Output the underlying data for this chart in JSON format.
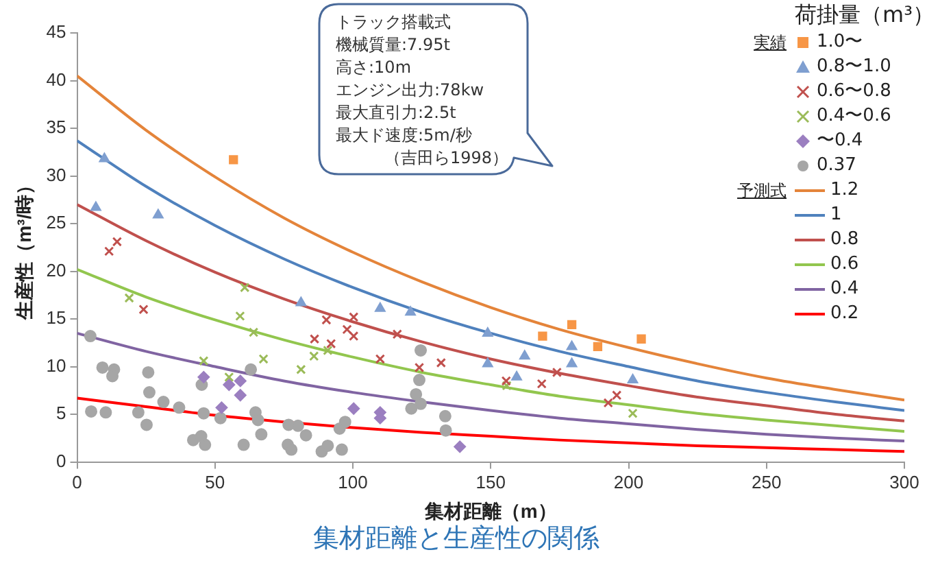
{
  "chart_data": {
    "type": "scatter",
    "title": "集材距離と生産性の関係",
    "xlabel": "集材距離（m）",
    "ylabel": "生産性（m³/時）",
    "legend_title": "荷掛量（m³）",
    "legend": "top right",
    "grid": false,
    "xlim": [
      0,
      300
    ],
    "xticks": [
      0,
      50,
      100,
      150,
      200,
      250,
      300
    ],
    "ylim": [
      0,
      45
    ],
    "yticks": [
      0,
      5,
      10,
      15,
      20,
      25,
      30,
      35,
      40,
      45
    ],
    "annotations": [
      "トラック搭載式",
      "機械質量:7.95t",
      "高さ:10m",
      "エンジン出力:78kw",
      "最大直引力:2.5t",
      "最大ド速度:5m/秒",
      "（吉田ら1998）",
      "実績",
      "予測式"
    ],
    "series": [
      {
        "name": "1.0〜",
        "type": "scatter",
        "marker": "square",
        "color": "#f79646",
        "x": [
          56.7,
          168.8,
          179.4,
          188.8,
          204.6
        ],
        "values": [
          31.7,
          13.2,
          14.4,
          12.1,
          12.9
        ]
      },
      {
        "name": "0.8〜1.0",
        "type": "scatter",
        "marker": "triangle",
        "color": "#7f9fd0",
        "x": [
          9.9,
          6.8,
          29.4,
          81.2,
          109.9,
          120.9,
          148.9,
          148.9,
          162.3,
          159.4,
          179.4,
          179.4,
          201.5
        ],
        "values": [
          31.8,
          26.7,
          25.9,
          16.7,
          16.1,
          15.7,
          13.5,
          10.3,
          11.1,
          8.9,
          12.1,
          10.3,
          8.6
        ]
      },
      {
        "name": "0.6〜0.8",
        "type": "scatter",
        "marker": "cross",
        "color": "#c0504d",
        "x": [
          11.6,
          14.5,
          24.1,
          86.1,
          92.1,
          90.4,
          97.9,
          100.3,
          100.3,
          116.1,
          109.9,
          124.1,
          132,
          155.6,
          168.5,
          174,
          192.6,
          195.7
        ],
        "values": [
          22.1,
          23.1,
          16.0,
          12.9,
          12.4,
          14.9,
          13.9,
          15.2,
          13.2,
          13.4,
          10.8,
          9.9,
          10.4,
          8.5,
          8.2,
          9.4,
          6.2,
          7.0
        ]
      },
      {
        "name": "0.4〜0.6",
        "type": "scatter",
        "marker": "cross",
        "color": "#9bbb59",
        "x": [
          18.9,
          60.8,
          59.1,
          64.0,
          45.9,
          67.6,
          55.1,
          81.2,
          85.9,
          90.9,
          155.8,
          201.5
        ],
        "values": [
          17.2,
          18.3,
          15.3,
          13.6,
          10.6,
          10.8,
          8.9,
          9.7,
          11.1,
          11.7,
          8.0,
          5.1
        ]
      },
      {
        "name": "〜0.4",
        "type": "scatter",
        "marker": "diamond",
        "color": "#9b7fc0",
        "x": [
          45.9,
          55.1,
          59.2,
          59.2,
          52.4,
          100.3,
          109.9,
          109.9,
          138.8
        ],
        "values": [
          8.9,
          8.1,
          8.5,
          7.0,
          5.7,
          5.6,
          5.2,
          4.6,
          1.6
        ]
      },
      {
        "name": "0.37",
        "type": "scatter",
        "marker": "circle",
        "color": "#a6a6a6",
        "x": [
          4.8,
          5.1,
          10.4,
          9.2,
          13.4,
          12.8,
          22.2,
          25.2,
          25.8,
          26.2,
          31.3,
          37.0,
          42.1,
          46.4,
          45.0,
          45.9,
          45.2,
          52.0,
          60.4,
          63.0,
          64.7,
          65.6,
          66.8,
          76.4,
          77.7,
          76.7,
          80.1,
          83.0,
          88.7,
          90.9,
          96.0,
          95.2,
          97.2,
          124.6,
          124.1,
          122.9,
          121.2,
          124.6,
          133.5,
          133.7
        ],
        "values": [
          13.2,
          5.3,
          5.2,
          9.9,
          9.7,
          9.0,
          5.2,
          3.9,
          9.4,
          7.3,
          6.3,
          5.7,
          2.3,
          1.8,
          2.7,
          5.1,
          8.1,
          4.6,
          1.8,
          9.7,
          5.2,
          4.4,
          2.9,
          1.8,
          1.3,
          3.9,
          3.8,
          2.8,
          1.1,
          1.7,
          1.3,
          3.5,
          4.2,
          11.7,
          8.6,
          7.1,
          5.6,
          6.1,
          4.8,
          3.3
        ]
      },
      {
        "name": "1.2",
        "type": "line",
        "marker": "none",
        "color": "#e4843a",
        "x": [
          0,
          25,
          50,
          75,
          100,
          125,
          150,
          175,
          200,
          225,
          250,
          275,
          300
        ],
        "values": [
          40.5,
          34.8,
          29.9,
          25.6,
          22.0,
          18.9,
          16.2,
          13.9,
          12.0,
          10.3,
          8.8,
          7.6,
          6.5
        ]
      },
      {
        "name": "1",
        "type": "line",
        "marker": "none",
        "color": "#4f81bd",
        "x": [
          0,
          25,
          50,
          75,
          100,
          125,
          150,
          175,
          200,
          225,
          250,
          275,
          300
        ],
        "values": [
          33.7,
          28.9,
          24.8,
          21.3,
          18.3,
          15.7,
          13.5,
          11.6,
          10.0,
          8.5,
          7.3,
          6.3,
          5.4
        ]
      },
      {
        "name": "0.8",
        "type": "line",
        "marker": "none",
        "color": "#c0504d",
        "x": [
          0,
          25,
          50,
          75,
          100,
          125,
          150,
          175,
          200,
          225,
          250,
          275,
          300
        ],
        "values": [
          27.0,
          23.2,
          19.9,
          17.1,
          14.7,
          12.6,
          10.8,
          9.3,
          8.0,
          6.8,
          5.9,
          5.0,
          4.3
        ]
      },
      {
        "name": "0.6",
        "type": "line",
        "marker": "none",
        "color": "#92c64e",
        "x": [
          0,
          25,
          50,
          75,
          100,
          125,
          150,
          175,
          200,
          225,
          250,
          275,
          300
        ],
        "values": [
          20.2,
          17.3,
          14.9,
          12.8,
          11.0,
          9.4,
          8.1,
          6.9,
          6.0,
          5.1,
          4.4,
          3.8,
          3.2
        ]
      },
      {
        "name": "0.4",
        "type": "line",
        "marker": "none",
        "color": "#8064a2",
        "x": [
          0,
          25,
          50,
          75,
          100,
          125,
          150,
          175,
          200,
          225,
          250,
          275,
          300
        ],
        "values": [
          13.5,
          11.6,
          10.0,
          8.5,
          7.3,
          6.3,
          5.4,
          4.6,
          4.0,
          3.4,
          2.9,
          2.5,
          2.2
        ]
      },
      {
        "name": "0.2",
        "type": "line",
        "marker": "none",
        "color": "#ff0000",
        "x": [
          0,
          25,
          50,
          75,
          100,
          125,
          150,
          175,
          200,
          225,
          250,
          275,
          300
        ],
        "values": [
          6.7,
          5.8,
          4.9,
          4.2,
          3.6,
          3.1,
          2.7,
          2.3,
          2.0,
          1.7,
          1.5,
          1.3,
          1.1
        ]
      }
    ]
  }
}
